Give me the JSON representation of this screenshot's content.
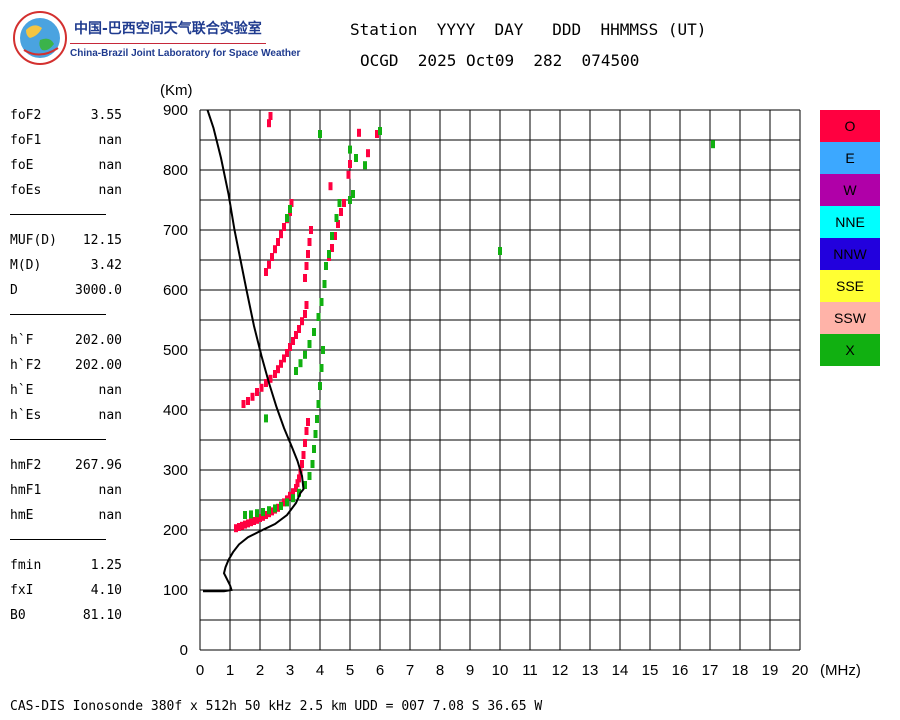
{
  "logo": {
    "name_cn": "中国-巴西空间天气联合实验室",
    "name_en": "China-Brazil Joint Laboratory for Space Weather"
  },
  "header": {
    "row1": "Station  YYYY  DAY   DDD  HHMMSS (UT)",
    "row2": "OCGD  2025 Oct09  282  074500"
  },
  "params": [
    {
      "label": "foF2",
      "value": "3.55"
    },
    {
      "label": "foF1",
      "value": "nan"
    },
    {
      "label": "foE",
      "value": "nan"
    },
    {
      "label": "foEs",
      "value": "nan"
    },
    {
      "label": "MUF(D)",
      "value": "12.15"
    },
    {
      "label": "M(D)",
      "value": "3.42"
    },
    {
      "label": "D",
      "value": "3000.0"
    },
    {
      "label": "h`F",
      "value": "202.00"
    },
    {
      "label": "h`F2",
      "value": "202.00"
    },
    {
      "label": "h`E",
      "value": "nan"
    },
    {
      "label": "h`Es",
      "value": "nan"
    },
    {
      "label": "hmF2",
      "value": "267.96"
    },
    {
      "label": "hmF1",
      "value": "nan"
    },
    {
      "label": "hmE",
      "value": "nan"
    },
    {
      "label": "fmin",
      "value": "1.25"
    },
    {
      "label": "fxI",
      "value": "4.10"
    },
    {
      "label": "B0",
      "value": "81.10"
    }
  ],
  "footer": "CAS-DIS Ionosonde 380f x 512h 50 kHz 2.5 km UDD = 007 7.08 S 36.65 W",
  "legend": [
    {
      "label": "O",
      "color": "#ff0040"
    },
    {
      "label": "E",
      "color": "#3ca8ff"
    },
    {
      "label": "W",
      "color": "#b000a8"
    },
    {
      "label": "NNE",
      "color": "#00ffff"
    },
    {
      "label": "NNW",
      "color": "#2200dd"
    },
    {
      "label": "SSE",
      "color": "#ffff33"
    },
    {
      "label": "SSW",
      "color": "#ffb3a8"
    },
    {
      "label": "X",
      "color": "#11b011"
    }
  ],
  "chart_data": {
    "type": "scatter",
    "xlabel": "(MHz)",
    "ylabel": "(Km)",
    "xlim": [
      0,
      20
    ],
    "ylim": [
      0,
      900
    ],
    "x_ticks": [
      0,
      1,
      2,
      3,
      4,
      5,
      6,
      7,
      8,
      9,
      10,
      11,
      12,
      13,
      14,
      15,
      16,
      17,
      18,
      19,
      20
    ],
    "y_ticks": [
      0,
      100,
      200,
      300,
      400,
      500,
      600,
      700,
      800,
      900
    ],
    "grid": true,
    "legend_position": "right",
    "series": [
      {
        "name": "O",
        "color": "#ff0040",
        "points": [
          [
            1.2,
            203
          ],
          [
            1.3,
            205
          ],
          [
            1.4,
            207
          ],
          [
            1.5,
            209
          ],
          [
            1.6,
            211
          ],
          [
            1.7,
            213
          ],
          [
            1.8,
            215
          ],
          [
            1.9,
            217
          ],
          [
            2.0,
            220
          ],
          [
            2.1,
            222
          ],
          [
            2.2,
            225
          ],
          [
            2.3,
            228
          ],
          [
            2.4,
            231
          ],
          [
            2.5,
            234
          ],
          [
            2.6,
            237
          ],
          [
            2.7,
            241
          ],
          [
            2.8,
            246
          ],
          [
            2.9,
            251
          ],
          [
            3.0,
            257
          ],
          [
            3.1,
            263
          ],
          [
            3.2,
            270
          ],
          [
            3.25,
            278
          ],
          [
            3.3,
            286
          ],
          [
            3.35,
            296
          ],
          [
            3.4,
            310
          ],
          [
            3.45,
            325
          ],
          [
            3.5,
            345
          ],
          [
            3.55,
            365
          ],
          [
            3.6,
            380
          ],
          [
            1.45,
            410
          ],
          [
            1.6,
            415
          ],
          [
            1.75,
            422
          ],
          [
            1.9,
            430
          ],
          [
            2.05,
            437
          ],
          [
            2.2,
            445
          ],
          [
            2.35,
            452
          ],
          [
            2.5,
            460
          ],
          [
            2.6,
            468
          ],
          [
            2.7,
            477
          ],
          [
            2.8,
            486
          ],
          [
            2.9,
            495
          ],
          [
            3.0,
            505
          ],
          [
            3.1,
            515
          ],
          [
            3.2,
            525
          ],
          [
            3.3,
            535
          ],
          [
            3.4,
            548
          ],
          [
            3.5,
            560
          ],
          [
            3.55,
            575
          ],
          [
            2.2,
            630
          ],
          [
            2.3,
            642
          ],
          [
            2.4,
            655
          ],
          [
            2.5,
            668
          ],
          [
            2.6,
            680
          ],
          [
            2.7,
            693
          ],
          [
            2.8,
            705
          ],
          [
            2.9,
            718
          ],
          [
            3.0,
            730
          ],
          [
            3.05,
            745
          ],
          [
            3.5,
            620
          ],
          [
            3.55,
            640
          ],
          [
            3.6,
            660
          ],
          [
            3.65,
            680
          ],
          [
            3.7,
            700
          ],
          [
            4.3,
            655
          ],
          [
            4.4,
            670
          ],
          [
            4.5,
            690
          ],
          [
            4.6,
            710
          ],
          [
            4.7,
            730
          ],
          [
            4.8,
            745
          ],
          [
            2.3,
            878
          ],
          [
            2.35,
            890
          ],
          [
            4.35,
            773
          ],
          [
            4.95,
            792
          ],
          [
            5.0,
            810
          ],
          [
            5.3,
            862
          ],
          [
            5.6,
            828
          ],
          [
            5.9,
            860
          ]
        ]
      },
      {
        "name": "X",
        "color": "#11b011",
        "points": [
          [
            1.5,
            225
          ],
          [
            1.7,
            226
          ],
          [
            1.9,
            228
          ],
          [
            2.1,
            230
          ],
          [
            2.3,
            233
          ],
          [
            2.5,
            236
          ],
          [
            2.7,
            240
          ],
          [
            2.9,
            246
          ],
          [
            3.1,
            253
          ],
          [
            3.3,
            262
          ],
          [
            3.5,
            275
          ],
          [
            3.65,
            290
          ],
          [
            3.75,
            310
          ],
          [
            3.8,
            335
          ],
          [
            3.85,
            360
          ],
          [
            3.9,
            385
          ],
          [
            3.95,
            410
          ],
          [
            4.0,
            440
          ],
          [
            4.05,
            470
          ],
          [
            4.1,
            500
          ],
          [
            3.2,
            465
          ],
          [
            3.35,
            478
          ],
          [
            3.5,
            492
          ],
          [
            3.65,
            510
          ],
          [
            3.8,
            530
          ],
          [
            3.95,
            555
          ],
          [
            4.05,
            580
          ],
          [
            4.15,
            610
          ],
          [
            4.2,
            640
          ],
          [
            4.3,
            660
          ],
          [
            4.4,
            690
          ],
          [
            4.55,
            720
          ],
          [
            4.65,
            745
          ],
          [
            2.9,
            720
          ],
          [
            3.0,
            735
          ],
          [
            4.0,
            860
          ],
          [
            5.0,
            750
          ],
          [
            5.1,
            760
          ],
          [
            5.0,
            834
          ],
          [
            5.2,
            820
          ],
          [
            5.5,
            808
          ],
          [
            6.0,
            865
          ],
          [
            2.2,
            386
          ],
          [
            10.0,
            665
          ],
          [
            17.1,
            843
          ]
        ]
      }
    ],
    "profile_line": [
      [
        0.1,
        98
      ],
      [
        0.8,
        98
      ],
      [
        1.05,
        100
      ],
      [
        1.0,
        108
      ],
      [
        0.9,
        118
      ],
      [
        0.8,
        128
      ],
      [
        0.85,
        138
      ],
      [
        0.95,
        150
      ],
      [
        1.1,
        163
      ],
      [
        1.3,
        176
      ],
      [
        1.6,
        188
      ],
      [
        2.0,
        198
      ],
      [
        2.5,
        210
      ],
      [
        2.9,
        225
      ],
      [
        3.2,
        245
      ],
      [
        3.35,
        262
      ],
      [
        3.45,
        268
      ],
      [
        3.4,
        290
      ],
      [
        3.25,
        315
      ],
      [
        3.05,
        340
      ],
      [
        2.8,
        370
      ],
      [
        2.55,
        405
      ],
      [
        2.3,
        445
      ],
      [
        2.05,
        490
      ],
      [
        1.8,
        540
      ],
      [
        1.55,
        600
      ],
      [
        1.35,
        650
      ],
      [
        1.15,
        700
      ],
      [
        0.95,
        760
      ],
      [
        0.7,
        820
      ],
      [
        0.45,
        870
      ],
      [
        0.25,
        900
      ]
    ]
  }
}
